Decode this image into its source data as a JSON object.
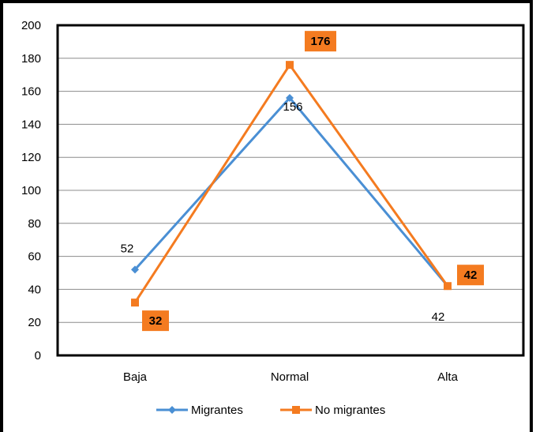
{
  "chart_data": {
    "type": "line",
    "categories": [
      "Baja",
      "Normal",
      "Alta"
    ],
    "series": [
      {
        "name": "Migrantes",
        "values": [
          52,
          156,
          42
        ],
        "color": "#4a8fd4",
        "marker": "diamond"
      },
      {
        "name": "No migrantes",
        "values": [
          32,
          176,
          42
        ],
        "color": "#f47b20",
        "marker": "square"
      }
    ],
    "ylim": [
      0,
      200
    ],
    "yticks": [
      0,
      20,
      40,
      60,
      80,
      100,
      120,
      140,
      160,
      180,
      200
    ],
    "grid": true,
    "legend_position": "bottom",
    "data_labels": {
      "Migrantes": [
        "52",
        "156",
        "42"
      ],
      "No migrantes": [
        "32",
        "176",
        "42"
      ]
    },
    "title": "",
    "xlabel": "",
    "ylabel": ""
  }
}
